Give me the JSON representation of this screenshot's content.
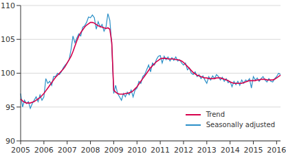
{
  "chart_data": {
    "type": "line",
    "categories": [
      "2005",
      null,
      null,
      null,
      null,
      null,
      null,
      null,
      null,
      null,
      null,
      null,
      "2006",
      null,
      null,
      null,
      null,
      null,
      null,
      null,
      null,
      null,
      null,
      null,
      "2007",
      null,
      null,
      null,
      null,
      null,
      null,
      null,
      null,
      null,
      null,
      null,
      "2008",
      null,
      null,
      null,
      null,
      null,
      null,
      null,
      null,
      null,
      null,
      null,
      "2009",
      null,
      null,
      null,
      null,
      null,
      null,
      null,
      null,
      null,
      null,
      null,
      "2010",
      null,
      null,
      null,
      null,
      null,
      null,
      null,
      null,
      null,
      null,
      null,
      "2011",
      null,
      null,
      null,
      null,
      null,
      null,
      null,
      null,
      null,
      null,
      null,
      "2012",
      null,
      null,
      null,
      null,
      null,
      null,
      null,
      null,
      null,
      null,
      null,
      "2013",
      null,
      null,
      null,
      null,
      null,
      null,
      null,
      null,
      null,
      null,
      null,
      "2014",
      null,
      null,
      null,
      null,
      null,
      null,
      null,
      null,
      null,
      null,
      null,
      "2015",
      null,
      null,
      null,
      null,
      null,
      null,
      null,
      null,
      null,
      null,
      null,
      "2016",
      null,
      null
    ],
    "series": [
      {
        "name": "Trend",
        "color": "#d6004c",
        "values": [
          96.2,
          95.9,
          95.7,
          95.6,
          95.6,
          95.6,
          95.7,
          95.8,
          96.0,
          96.2,
          96.4,
          96.7,
          97.0,
          97.4,
          97.8,
          98.2,
          98.6,
          99.0,
          99.4,
          99.7,
          100.0,
          100.3,
          100.6,
          101.0,
          101.5,
          102.0,
          102.5,
          103.2,
          104.0,
          104.8,
          105.5,
          106.0,
          106.4,
          106.8,
          107.1,
          107.3,
          107.5,
          107.5,
          107.4,
          107.2,
          107.0,
          106.9,
          106.8,
          106.7,
          106.6,
          106.7,
          106.5,
          104.5,
          97.5,
          97.2,
          97.0,
          96.9,
          96.9,
          96.9,
          97.0,
          97.0,
          97.1,
          97.2,
          97.4,
          97.7,
          98.0,
          98.4,
          98.8,
          99.2,
          99.6,
          100.0,
          100.4,
          100.8,
          101.1,
          101.4,
          101.7,
          101.9,
          102.1,
          102.2,
          102.2,
          102.2,
          102.1,
          102.1,
          102.1,
          102.1,
          102.0,
          102.0,
          101.9,
          101.8,
          101.6,
          101.3,
          101.0,
          100.7,
          100.4,
          100.1,
          99.9,
          99.7,
          99.6,
          99.5,
          99.4,
          99.3,
          99.3,
          99.2,
          99.2,
          99.2,
          99.2,
          99.3,
          99.3,
          99.3,
          99.2,
          99.1,
          99.0,
          98.9,
          98.7,
          98.6,
          98.5,
          98.5,
          98.5,
          98.5,
          98.5,
          98.6,
          98.7,
          98.8,
          98.9,
          98.9,
          98.9,
          98.9,
          99.0,
          99.0,
          99.1,
          99.1,
          99.1,
          99.0,
          99.0,
          99.0,
          99.0,
          99.1,
          99.3,
          99.5,
          99.7
        ]
      },
      {
        "name": "Seasonally adjusted",
        "color": "#2a8fc7",
        "values": [
          97.0,
          95.0,
          96.0,
          95.5,
          95.8,
          94.8,
          95.5,
          96.0,
          96.5,
          95.8,
          96.8,
          96.0,
          96.5,
          99.2,
          98.5,
          98.8,
          98.2,
          99.5,
          99.5,
          100.0,
          99.8,
          100.2,
          100.8,
          101.2,
          101.5,
          102.0,
          103.5,
          105.5,
          104.5,
          105.2,
          105.8,
          105.5,
          106.8,
          107.0,
          107.5,
          108.3,
          108.2,
          108.6,
          108.2,
          106.5,
          107.6,
          106.8,
          107.2,
          106.2,
          106.8,
          108.8,
          107.8,
          104.2,
          97.0,
          98.2,
          97.0,
          96.5,
          96.0,
          97.0,
          96.5,
          97.2,
          96.8,
          97.5,
          96.5,
          97.5,
          97.8,
          98.8,
          98.5,
          99.5,
          99.8,
          100.5,
          101.2,
          100.2,
          101.5,
          101.2,
          102.0,
          102.5,
          102.6,
          101.5,
          102.5,
          102.0,
          102.4,
          101.8,
          102.3,
          101.9,
          102.4,
          101.8,
          102.0,
          101.5,
          101.2,
          101.5,
          100.5,
          100.8,
          100.0,
          99.8,
          100.2,
          99.5,
          99.8,
          99.2,
          99.6,
          99.0,
          98.5,
          99.5,
          99.0,
          99.6,
          99.2,
          99.8,
          99.5,
          99.0,
          99.4,
          98.8,
          99.2,
          98.6,
          98.8,
          98.0,
          98.8,
          98.3,
          98.8,
          98.2,
          99.0,
          98.5,
          99.0,
          98.8,
          99.2,
          97.8,
          99.5,
          99.0,
          99.3,
          98.8,
          99.2,
          99.5,
          99.0,
          98.7,
          99.2,
          98.8,
          98.7,
          99.2,
          99.5,
          100.0,
          99.8
        ]
      }
    ],
    "ylim": [
      90,
      110
    ],
    "yticks": [
      90,
      95,
      100,
      105,
      110
    ],
    "grid": true,
    "legend": "lower right"
  }
}
